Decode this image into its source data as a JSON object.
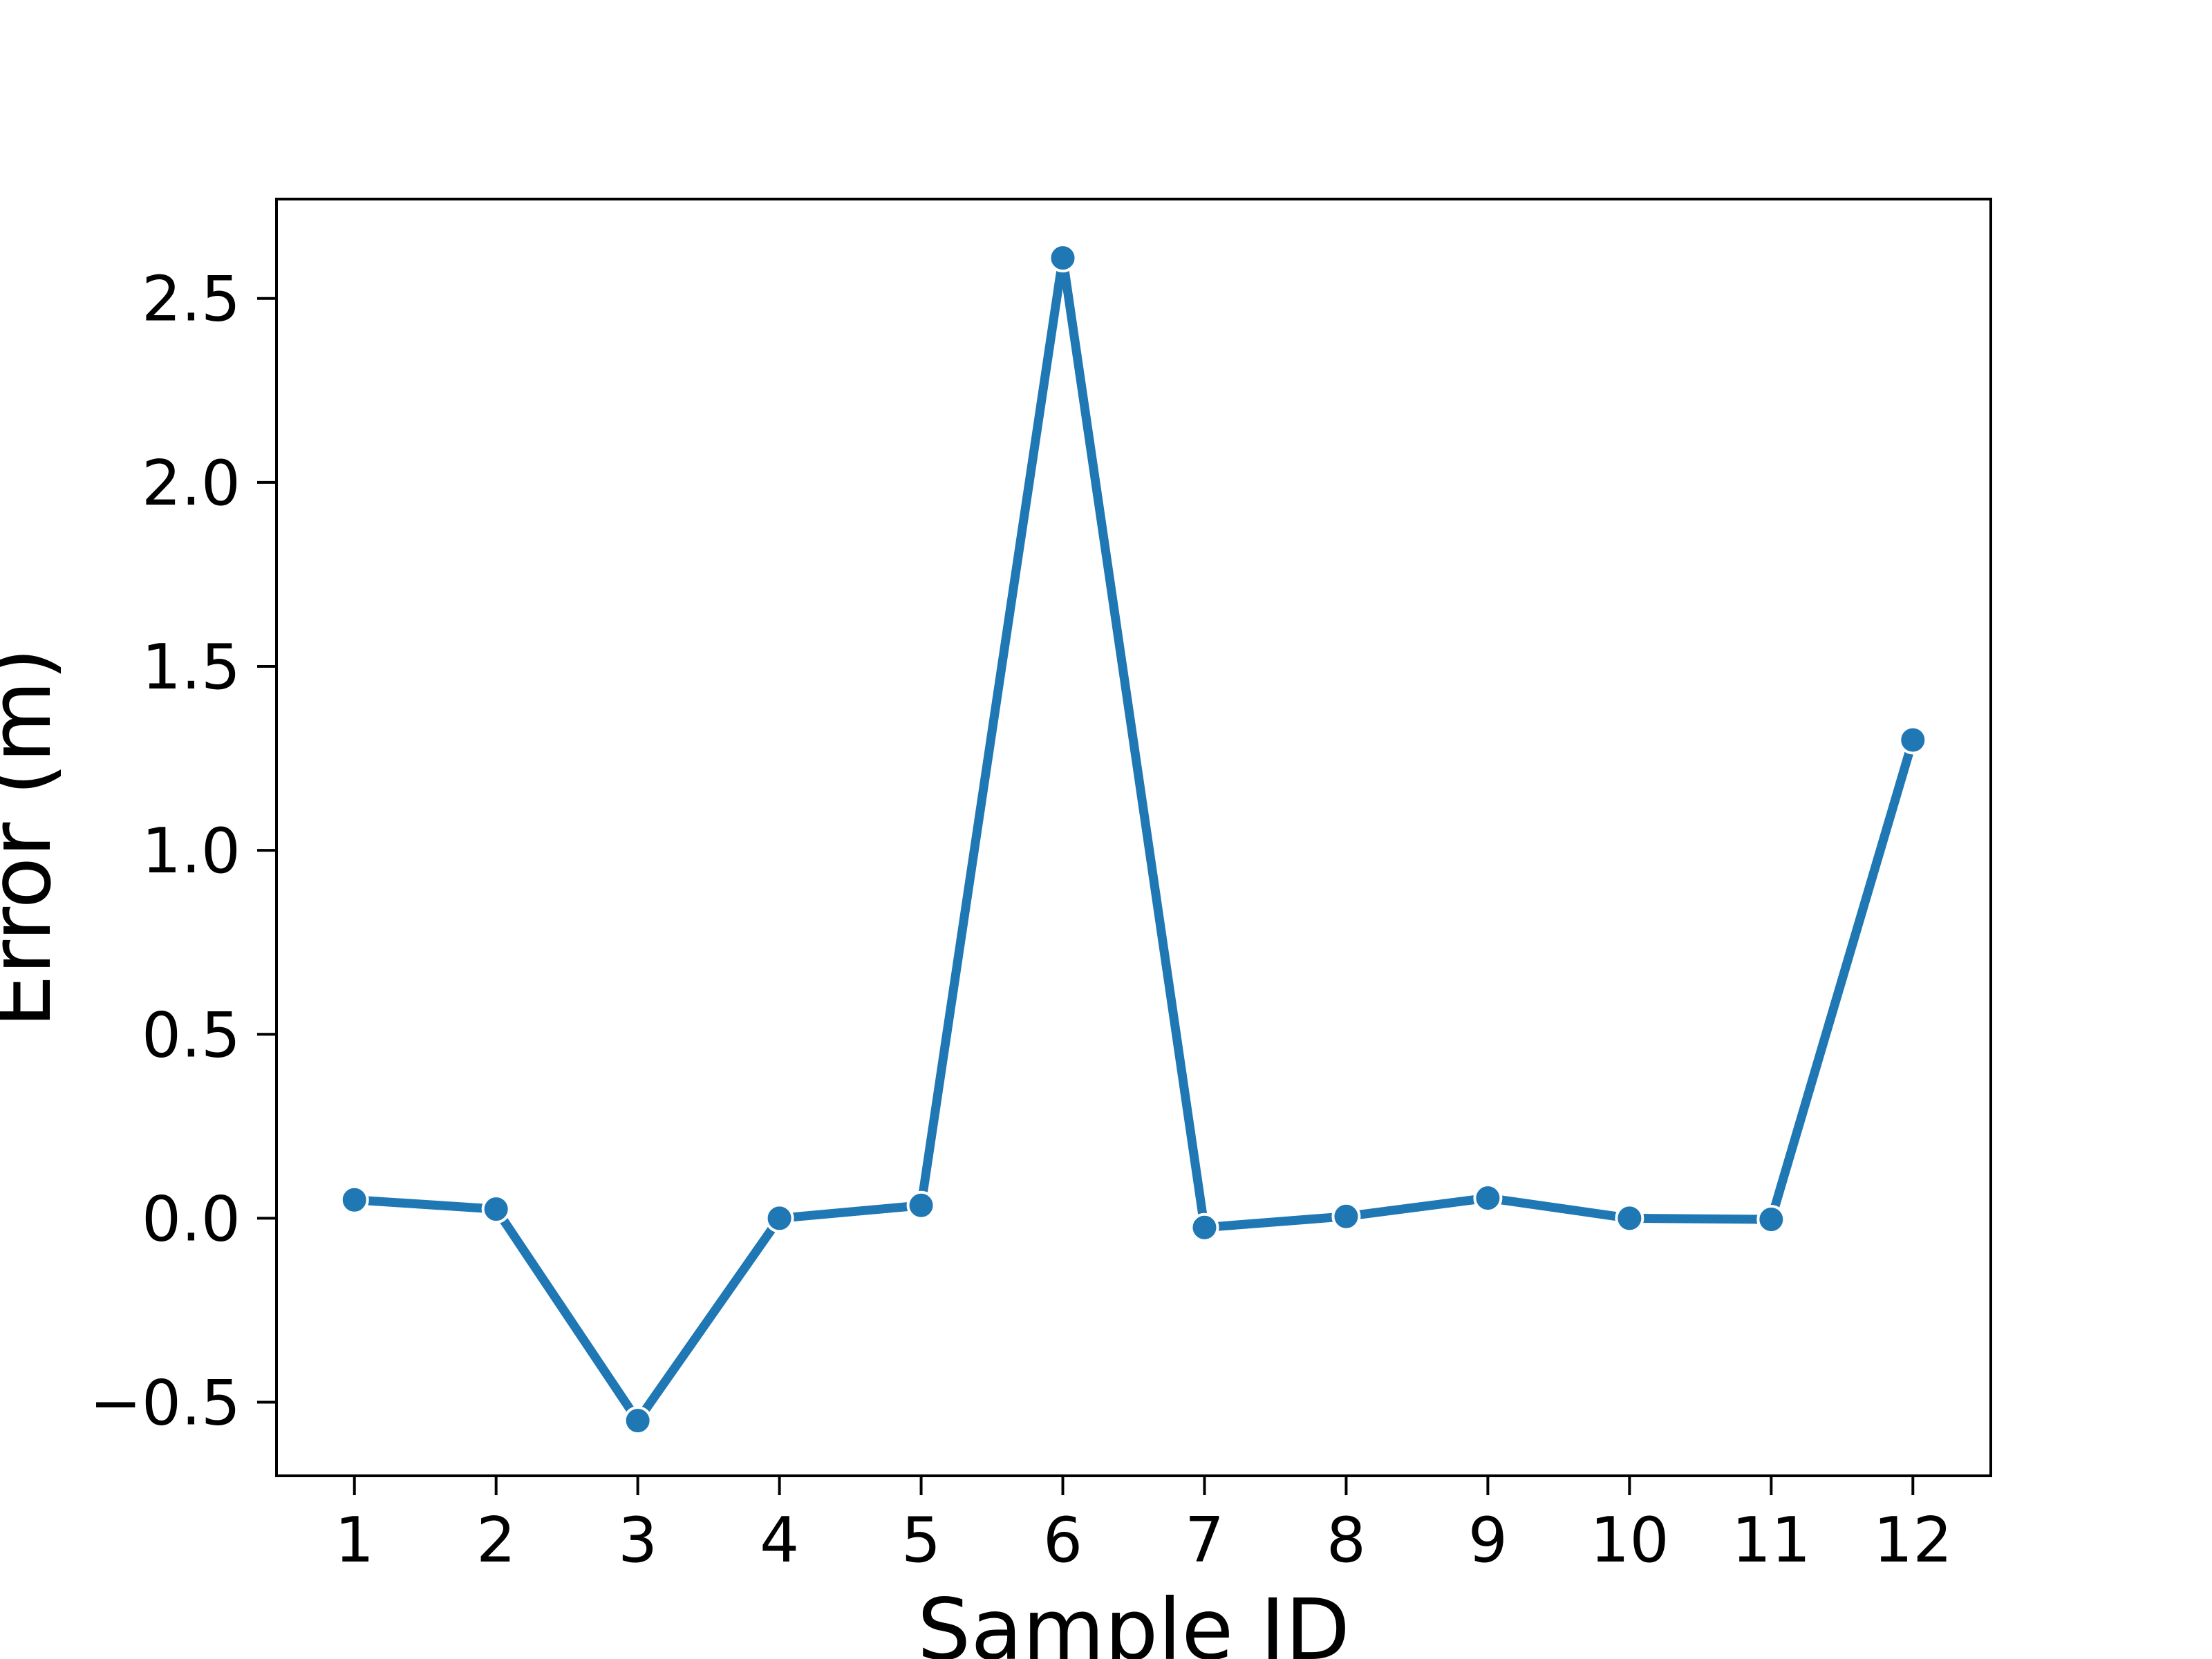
{
  "chart_data": {
    "type": "line",
    "title": "",
    "xlabel": "Sample ID",
    "ylabel": "Error (m)",
    "x": [
      1,
      2,
      3,
      4,
      5,
      6,
      7,
      8,
      9,
      10,
      11,
      12
    ],
    "xtick_labels": [
      "1",
      "2",
      "3",
      "4",
      "5",
      "6",
      "7",
      "8",
      "9",
      "10",
      "11",
      "12"
    ],
    "yticks": [
      -0.5,
      0.0,
      0.5,
      1.0,
      1.5,
      2.0,
      2.5
    ],
    "ytick_labels": [
      "−0.5",
      "0.0",
      "0.5",
      "1.0",
      "1.5",
      "2.0",
      "2.5"
    ],
    "xlim": [
      0.45,
      12.55
    ],
    "ylim": [
      -0.7,
      2.77
    ],
    "grid": false,
    "legend": "none",
    "series": [
      {
        "color": "#1f77b4",
        "marker": "circle",
        "values": [
          0.05,
          0.025,
          -0.55,
          0.0,
          0.035,
          2.61,
          -0.025,
          0.005,
          0.055,
          0.0,
          -0.003,
          1.3
        ]
      }
    ]
  }
}
